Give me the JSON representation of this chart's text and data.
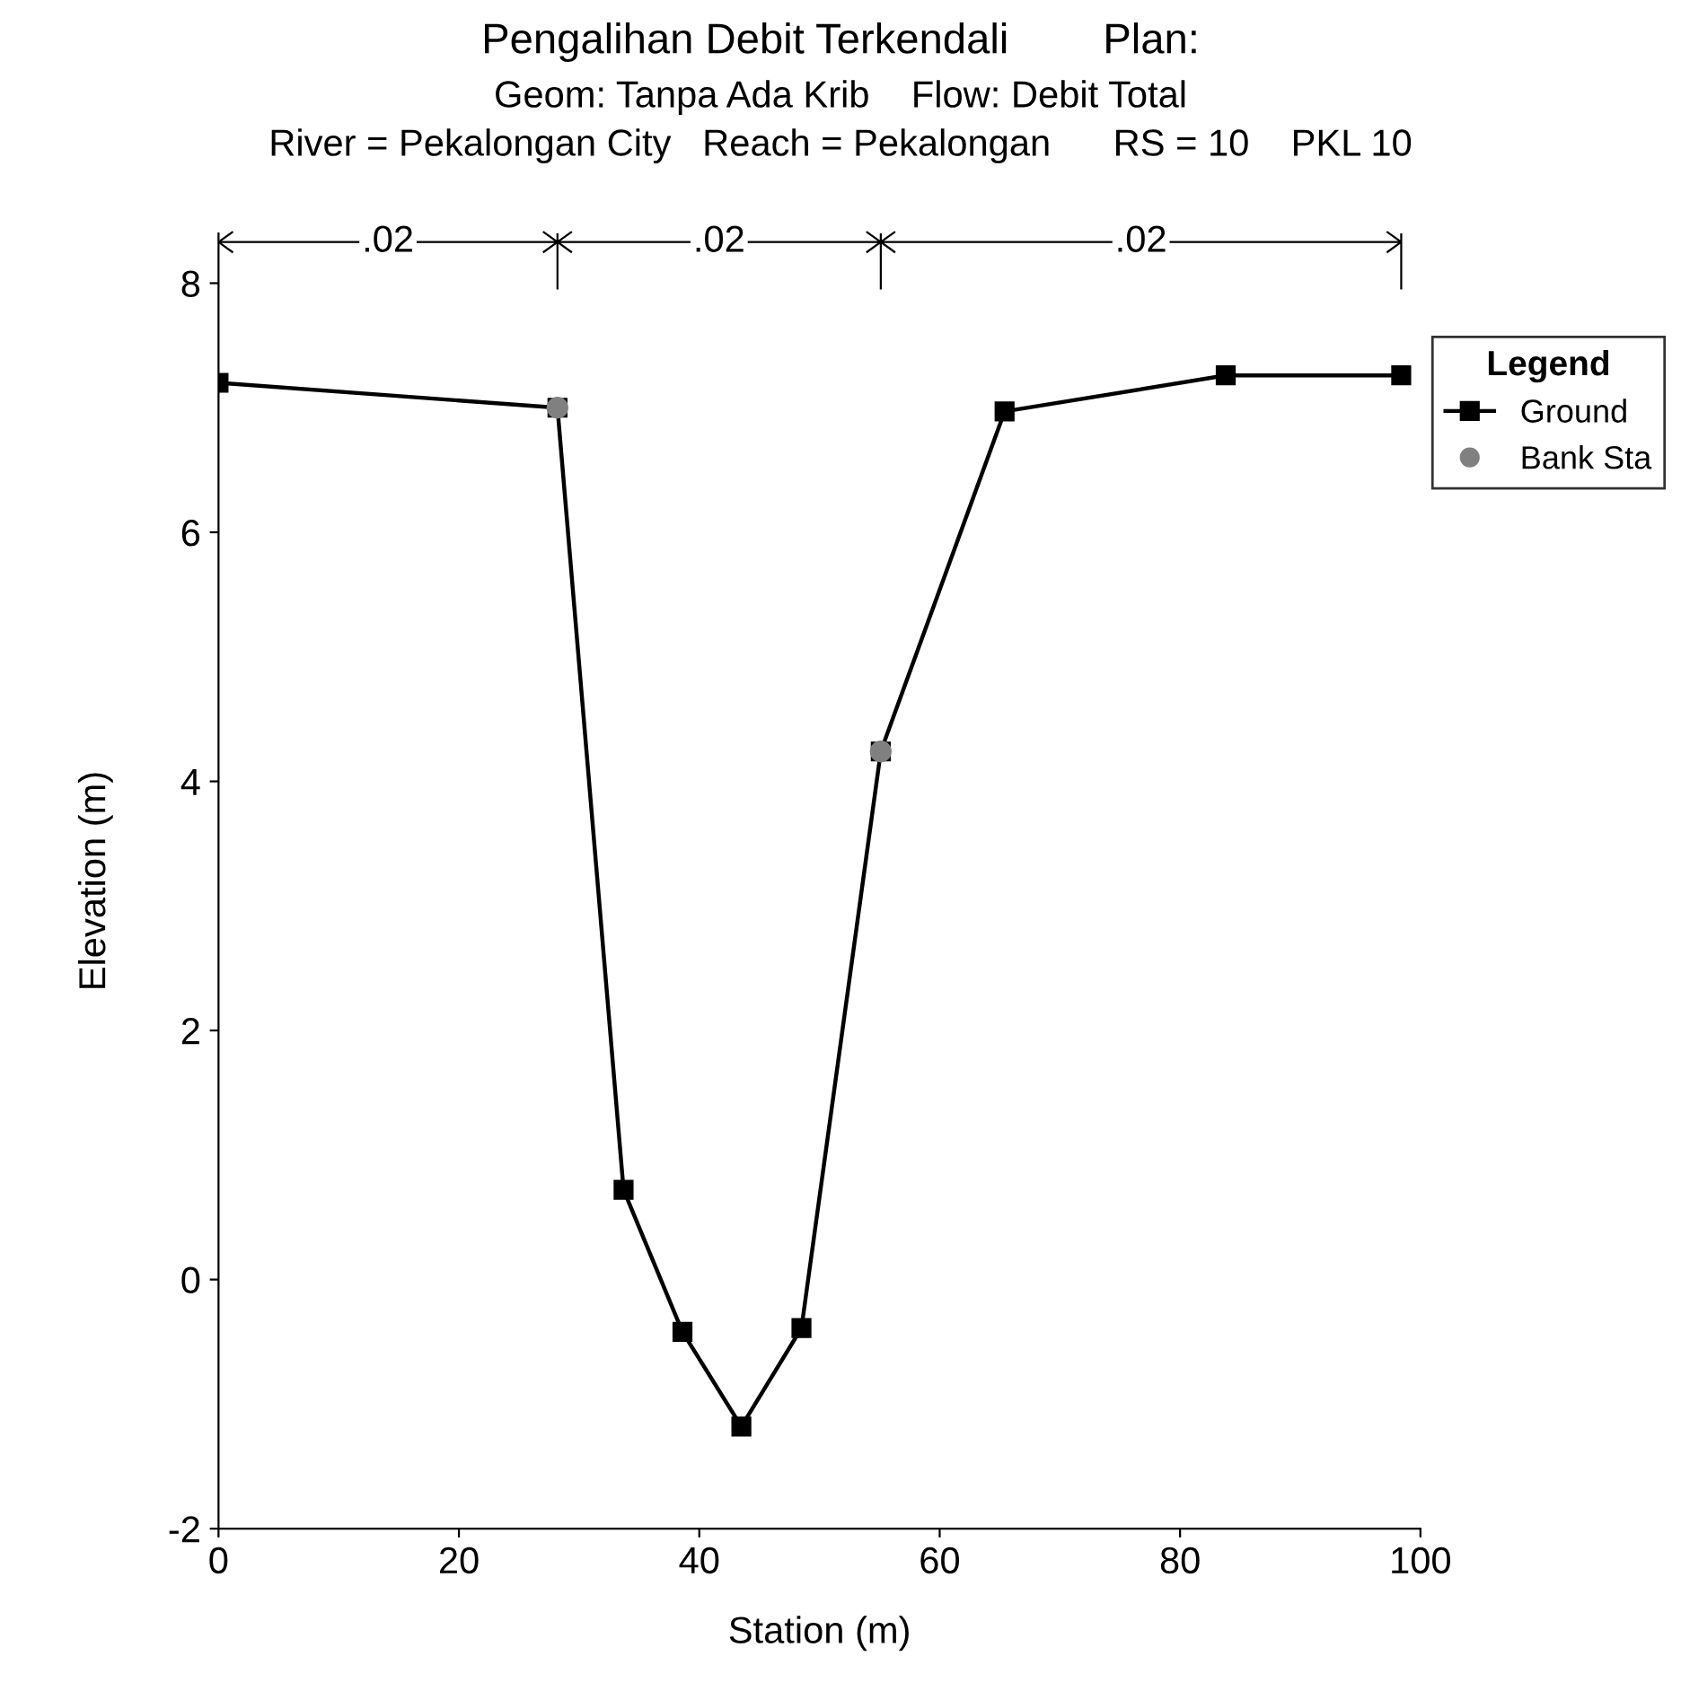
{
  "chart_data": {
    "type": "line",
    "title": "Pengalihan Debit Terkendali        Plan:",
    "subtitle": "Geom: Tanpa Ada Krib    Flow: Debit Total\nRiver = Pekalongan City   Reach = Pekalongan      RS = 10    PKL 10",
    "xlabel": "Station (m)",
    "ylabel": "Elevation (m)",
    "legend_title": "Legend",
    "series": [
      {
        "name": "Ground",
        "color": "#000000",
        "marker": "square",
        "line_style": "solid",
        "x": [
          0,
          28.2,
          33.7,
          38.6,
          43.5,
          48.5,
          55.1,
          65.4,
          83.8,
          98.4
        ],
        "values": [
          7.2,
          7.0,
          0.72,
          -0.42,
          -1.18,
          -0.39,
          4.24,
          6.97,
          7.26,
          7.26
        ]
      },
      {
        "name": "Bank Sta",
        "type": "scatter",
        "color": "#808080",
        "marker": "circle",
        "x": [
          28.2,
          55.1
        ],
        "values": [
          7.0,
          4.24
        ]
      }
    ],
    "annotations": [
      {
        "text": ".02",
        "x": 14.1,
        "y": 8.33
      },
      {
        "text": ".02",
        "x": 41.65,
        "y": 8.33
      },
      {
        "text": ".02",
        "x": 76.75,
        "y": 8.33
      }
    ],
    "xlim": [
      0,
      100
    ],
    "ylim": [
      -2,
      8.4
    ],
    "xticks": [
      0,
      20,
      40,
      60,
      80,
      100
    ],
    "yticks": [
      -2,
      0,
      2,
      4,
      6,
      8
    ],
    "grid": false,
    "legend": "right"
  }
}
